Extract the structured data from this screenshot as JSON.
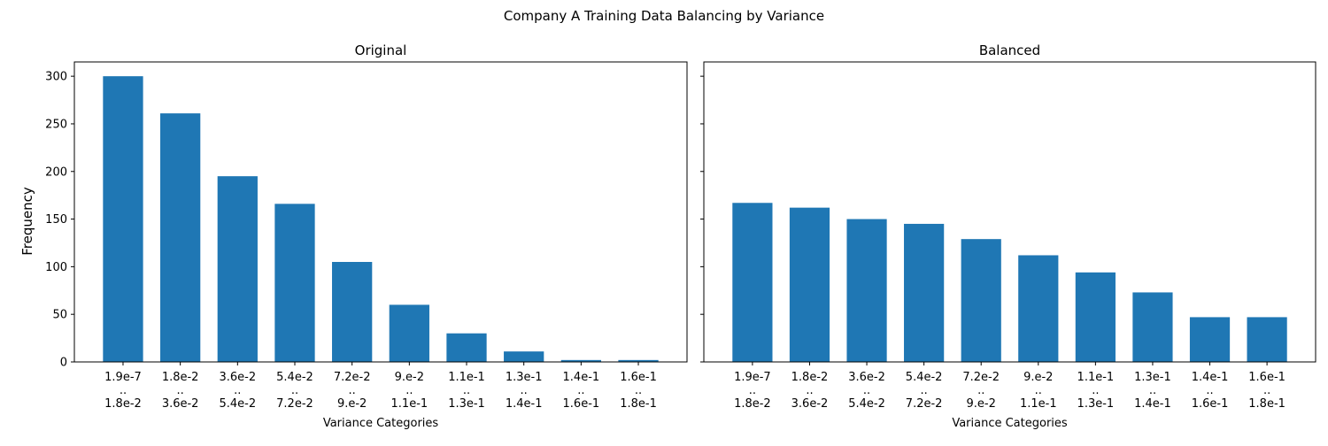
{
  "figure": {
    "title": "Company A Training Data Balancing by Variance",
    "shared_ylabel": "Frequency"
  },
  "chart_data": [
    {
      "type": "bar",
      "title": "Original",
      "xlabel": "Variance Categories",
      "ylabel": "Frequency",
      "ylim": [
        0,
        315
      ],
      "yticks": [
        0,
        50,
        100,
        150,
        200,
        250,
        300
      ],
      "grid": false,
      "bar_color": "#1f77b4",
      "categories": [
        [
          "1.9e-7",
          "..",
          "1.8e-2"
        ],
        [
          "1.8e-2",
          "..",
          "3.6e-2"
        ],
        [
          "3.6e-2",
          "..",
          "5.4e-2"
        ],
        [
          "5.4e-2",
          "..",
          "7.2e-2"
        ],
        [
          "7.2e-2",
          "..",
          "9.e-2"
        ],
        [
          "9.e-2",
          "..",
          "1.1e-1"
        ],
        [
          "1.1e-1",
          "..",
          "1.3e-1"
        ],
        [
          "1.3e-1",
          "..",
          "1.4e-1"
        ],
        [
          "1.4e-1",
          "..",
          "1.6e-1"
        ],
        [
          "1.6e-1",
          "..",
          "1.8e-1"
        ]
      ],
      "values": [
        300,
        261,
        195,
        166,
        105,
        60,
        30,
        11,
        2,
        2
      ]
    },
    {
      "type": "bar",
      "title": "Balanced",
      "xlabel": "Variance Categories",
      "ylabel": "",
      "ylim": [
        0,
        315
      ],
      "yticks": [
        0,
        50,
        100,
        150,
        200,
        250,
        300
      ],
      "show_ytick_labels": false,
      "grid": false,
      "bar_color": "#1f77b4",
      "categories": [
        [
          "1.9e-7",
          "..",
          "1.8e-2"
        ],
        [
          "1.8e-2",
          "..",
          "3.6e-2"
        ],
        [
          "3.6e-2",
          "..",
          "5.4e-2"
        ],
        [
          "5.4e-2",
          "..",
          "7.2e-2"
        ],
        [
          "7.2e-2",
          "..",
          "9.e-2"
        ],
        [
          "9.e-2",
          "..",
          "1.1e-1"
        ],
        [
          "1.1e-1",
          "..",
          "1.3e-1"
        ],
        [
          "1.3e-1",
          "..",
          "1.4e-1"
        ],
        [
          "1.4e-1",
          "..",
          "1.6e-1"
        ],
        [
          "1.6e-1",
          "..",
          "1.8e-1"
        ]
      ],
      "values": [
        167,
        162,
        150,
        145,
        129,
        112,
        94,
        73,
        47,
        47
      ]
    }
  ]
}
